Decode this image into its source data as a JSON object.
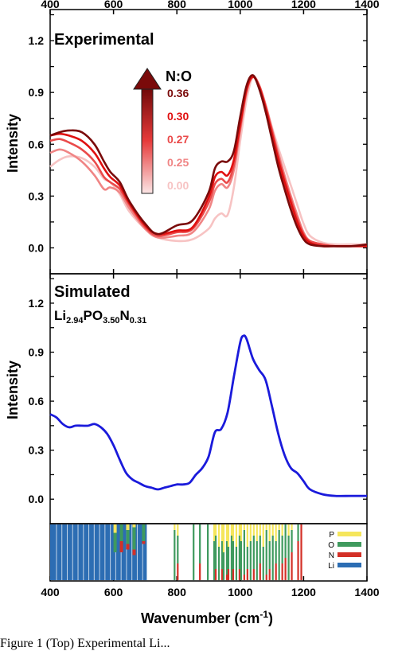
{
  "chart_data": [
    {
      "type": "line",
      "panel": "top",
      "title": "Experimental",
      "ylabel": "Intensity",
      "xlim": [
        400,
        1400
      ],
      "ylim": [
        -0.15,
        1.38
      ],
      "xticks": [
        "400",
        "600",
        "800",
        "1000",
        "1200",
        "1400"
      ],
      "yticks": [
        "0.0",
        "0.3",
        "0.6",
        "0.9",
        "1.2"
      ],
      "legend_title": "N:O",
      "series": [
        {
          "name": "0.00",
          "color": "#f7c3c3",
          "x": [
            400,
            430,
            460,
            500,
            540,
            570,
            590,
            620,
            650,
            700,
            740,
            800,
            850,
            900,
            920,
            940,
            960,
            980,
            1000,
            1020,
            1040,
            1060,
            1080,
            1100,
            1120,
            1140,
            1160,
            1180,
            1200,
            1220,
            1260,
            1300,
            1350,
            1400
          ],
          "y": [
            0.47,
            0.51,
            0.53,
            0.52,
            0.47,
            0.4,
            0.38,
            0.31,
            0.21,
            0.11,
            0.06,
            0.04,
            0.05,
            0.11,
            0.17,
            0.2,
            0.19,
            0.35,
            0.62,
            0.86,
            0.99,
            0.94,
            0.83,
            0.7,
            0.58,
            0.47,
            0.36,
            0.25,
            0.14,
            0.07,
            0.03,
            0.02,
            0.02,
            0.02
          ]
        },
        {
          "name": "0.25",
          "color": "#f08585",
          "x": [
            400,
            430,
            460,
            500,
            540,
            570,
            590,
            620,
            650,
            700,
            740,
            800,
            850,
            900,
            920,
            940,
            960,
            980,
            1000,
            1020,
            1040,
            1060,
            1080,
            1100,
            1120,
            1140,
            1160,
            1180,
            1200,
            1220,
            1260,
            1300,
            1350,
            1400
          ],
          "y": [
            0.55,
            0.57,
            0.55,
            0.5,
            0.42,
            0.34,
            0.35,
            0.32,
            0.23,
            0.11,
            0.06,
            0.07,
            0.09,
            0.22,
            0.33,
            0.37,
            0.35,
            0.45,
            0.68,
            0.9,
            0.99,
            0.94,
            0.83,
            0.69,
            0.55,
            0.42,
            0.3,
            0.19,
            0.09,
            0.04,
            0.02,
            0.01,
            0.01,
            0.01
          ]
        },
        {
          "name": "0.27",
          "color": "#ea4a4a",
          "x": [
            400,
            430,
            460,
            500,
            540,
            570,
            590,
            620,
            650,
            700,
            740,
            800,
            850,
            900,
            920,
            940,
            960,
            980,
            1000,
            1020,
            1040,
            1060,
            1080,
            1100,
            1120,
            1140,
            1160,
            1180,
            1200,
            1220,
            1260,
            1300,
            1350,
            1400
          ],
          "y": [
            0.62,
            0.63,
            0.61,
            0.57,
            0.5,
            0.41,
            0.38,
            0.34,
            0.25,
            0.12,
            0.07,
            0.09,
            0.11,
            0.26,
            0.37,
            0.4,
            0.38,
            0.48,
            0.7,
            0.91,
            0.99,
            0.94,
            0.82,
            0.68,
            0.53,
            0.4,
            0.28,
            0.17,
            0.08,
            0.04,
            0.02,
            0.01,
            0.01,
            0.01
          ]
        },
        {
          "name": "0.30",
          "color": "#e01010",
          "x": [
            400,
            430,
            460,
            500,
            540,
            570,
            590,
            620,
            650,
            700,
            740,
            800,
            850,
            900,
            920,
            940,
            960,
            980,
            1000,
            1020,
            1040,
            1060,
            1080,
            1100,
            1120,
            1140,
            1160,
            1180,
            1200,
            1220,
            1260,
            1300,
            1350,
            1400
          ],
          "y": [
            0.65,
            0.66,
            0.65,
            0.62,
            0.55,
            0.46,
            0.41,
            0.36,
            0.26,
            0.13,
            0.08,
            0.1,
            0.12,
            0.29,
            0.41,
            0.44,
            0.42,
            0.51,
            0.72,
            0.92,
            0.99,
            0.93,
            0.81,
            0.66,
            0.51,
            0.38,
            0.26,
            0.15,
            0.07,
            0.03,
            0.01,
            0.01,
            0.01,
            0.01
          ]
        },
        {
          "name": "0.36",
          "color": "#7a0a0a",
          "x": [
            400,
            430,
            460,
            500,
            540,
            570,
            590,
            620,
            650,
            700,
            740,
            800,
            850,
            900,
            920,
            940,
            960,
            980,
            1000,
            1020,
            1040,
            1060,
            1080,
            1100,
            1120,
            1140,
            1160,
            1180,
            1200,
            1220,
            1260,
            1300,
            1350,
            1400
          ],
          "y": [
            0.65,
            0.67,
            0.68,
            0.67,
            0.6,
            0.5,
            0.44,
            0.38,
            0.27,
            0.14,
            0.08,
            0.13,
            0.16,
            0.32,
            0.46,
            0.5,
            0.5,
            0.56,
            0.76,
            0.94,
            1.0,
            0.92,
            0.79,
            0.63,
            0.47,
            0.34,
            0.22,
            0.12,
            0.05,
            0.02,
            0.01,
            0.01,
            0.01,
            0.02
          ]
        }
      ]
    },
    {
      "type": "line",
      "panel": "bottom",
      "title": "Simulated",
      "formula": {
        "parts": [
          {
            "t": "Li",
            "sub": false
          },
          {
            "t": "2.94",
            "sub": true
          },
          {
            "t": "PO",
            "sub": false
          },
          {
            "t": "3.50",
            "sub": true
          },
          {
            "t": "N",
            "sub": false
          },
          {
            "t": "0.31",
            "sub": true
          }
        ]
      },
      "ylabel": "Intensity",
      "xlim": [
        400,
        1400
      ],
      "ylim": [
        -0.15,
        1.38
      ],
      "yticks": [
        "0.0",
        "0.3",
        "0.6",
        "0.9",
        "1.2"
      ],
      "series": [
        {
          "color": "#1a1adb",
          "x": [
            400,
            420,
            440,
            460,
            480,
            500,
            520,
            540,
            560,
            580,
            600,
            620,
            640,
            660,
            680,
            700,
            720,
            740,
            760,
            780,
            800,
            820,
            840,
            860,
            880,
            900,
            920,
            940,
            960,
            980,
            1000,
            1010,
            1020,
            1040,
            1060,
            1080,
            1100,
            1120,
            1140,
            1160,
            1180,
            1200,
            1220,
            1260,
            1300,
            1350,
            1400
          ],
          "y": [
            0.52,
            0.5,
            0.46,
            0.44,
            0.45,
            0.45,
            0.45,
            0.46,
            0.44,
            0.4,
            0.33,
            0.24,
            0.16,
            0.12,
            0.1,
            0.08,
            0.07,
            0.06,
            0.07,
            0.08,
            0.09,
            0.09,
            0.1,
            0.15,
            0.19,
            0.26,
            0.41,
            0.43,
            0.53,
            0.75,
            0.96,
            1.0,
            0.98,
            0.86,
            0.79,
            0.73,
            0.57,
            0.4,
            0.27,
            0.19,
            0.16,
            0.11,
            0.06,
            0.03,
            0.02,
            0.02,
            0.02
          ]
        }
      ]
    }
  ],
  "xlabel": {
    "main": "Wavenumber (cm",
    "sup": "-1",
    "close": ")"
  },
  "strip": {
    "legend": [
      {
        "label": "P",
        "color": "#f5e65c"
      },
      {
        "label": "O",
        "color": "#3f9a5e"
      },
      {
        "label": "N",
        "color": "#d33027"
      },
      {
        "label": "Li",
        "color": "#2c6db3"
      }
    ]
  },
  "caption": "Figure 1 (Top) Experimental Li..."
}
